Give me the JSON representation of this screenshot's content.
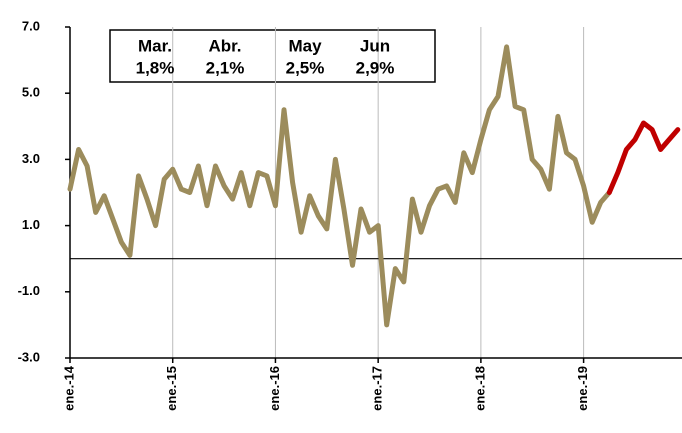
{
  "chart_data": {
    "type": "line",
    "categories": [
      "ene.-14",
      null,
      null,
      null,
      null,
      null,
      null,
      null,
      null,
      null,
      null,
      null,
      "ene.-15",
      null,
      null,
      null,
      null,
      null,
      null,
      null,
      null,
      null,
      null,
      null,
      "ene.-16",
      null,
      null,
      null,
      null,
      null,
      null,
      null,
      null,
      null,
      null,
      null,
      "ene.-17",
      null,
      null,
      null,
      null,
      null,
      null,
      null,
      null,
      null,
      null,
      null,
      "ene.-18",
      null,
      null,
      null,
      null,
      null,
      null,
      null,
      null,
      null,
      null,
      null,
      "ene.-19",
      null,
      null,
      null,
      null,
      null,
      null,
      null,
      null,
      null,
      null,
      null
    ],
    "series": [
      {
        "color": "#9c8c5c",
        "values": [
          2.1,
          3.3,
          2.8,
          1.4,
          1.9,
          1.2,
          0.5,
          0.1,
          2.5,
          1.8,
          1.0,
          2.4,
          2.7,
          2.1,
          2.0,
          2.8,
          1.6,
          2.8,
          2.2,
          1.8,
          2.6,
          1.6,
          2.6,
          2.5,
          1.6,
          4.5,
          2.3,
          0.8,
          1.9,
          1.3,
          0.9,
          3.0,
          1.5,
          -0.2,
          1.5,
          0.8,
          1.0,
          -2.0,
          -0.3,
          -0.7,
          1.8,
          0.8,
          1.6,
          2.1,
          2.2,
          1.7,
          3.2,
          2.6,
          3.6,
          4.5,
          4.9,
          6.4,
          4.6,
          4.5,
          3.0,
          2.7,
          2.1,
          4.3,
          3.2,
          3.0,
          2.2,
          1.1,
          1.7,
          2.0,
          null,
          null,
          null,
          null,
          null,
          null,
          null,
          null
        ]
      },
      {
        "color": "#c00000",
        "values": [
          null,
          null,
          null,
          null,
          null,
          null,
          null,
          null,
          null,
          null,
          null,
          null,
          null,
          null,
          null,
          null,
          null,
          null,
          null,
          null,
          null,
          null,
          null,
          null,
          null,
          null,
          null,
          null,
          null,
          null,
          null,
          null,
          null,
          null,
          null,
          null,
          null,
          null,
          null,
          null,
          null,
          null,
          null,
          null,
          null,
          null,
          null,
          null,
          null,
          null,
          null,
          null,
          null,
          null,
          null,
          null,
          null,
          null,
          null,
          null,
          null,
          null,
          null,
          2.0,
          2.6,
          3.3,
          3.6,
          4.1,
          3.9,
          3.3,
          3.6,
          3.9
        ]
      }
    ],
    "ylim": [
      -3,
      7
    ],
    "yticks": [
      {
        "value": -3,
        "label": "-3.0"
      },
      {
        "value": -1,
        "label": "-1.0"
      },
      {
        "value": 1,
        "label": "1.0"
      },
      {
        "value": 3,
        "label": "3.0"
      },
      {
        "value": 5,
        "label": "5.0"
      },
      {
        "value": 7,
        "label": "7.0"
      }
    ],
    "annotation": {
      "headers": [
        "Mar.",
        "Abr.",
        "May",
        "Jun"
      ],
      "values": [
        "1,8%",
        "2,1%",
        "2,5%",
        "2,9%"
      ]
    }
  }
}
